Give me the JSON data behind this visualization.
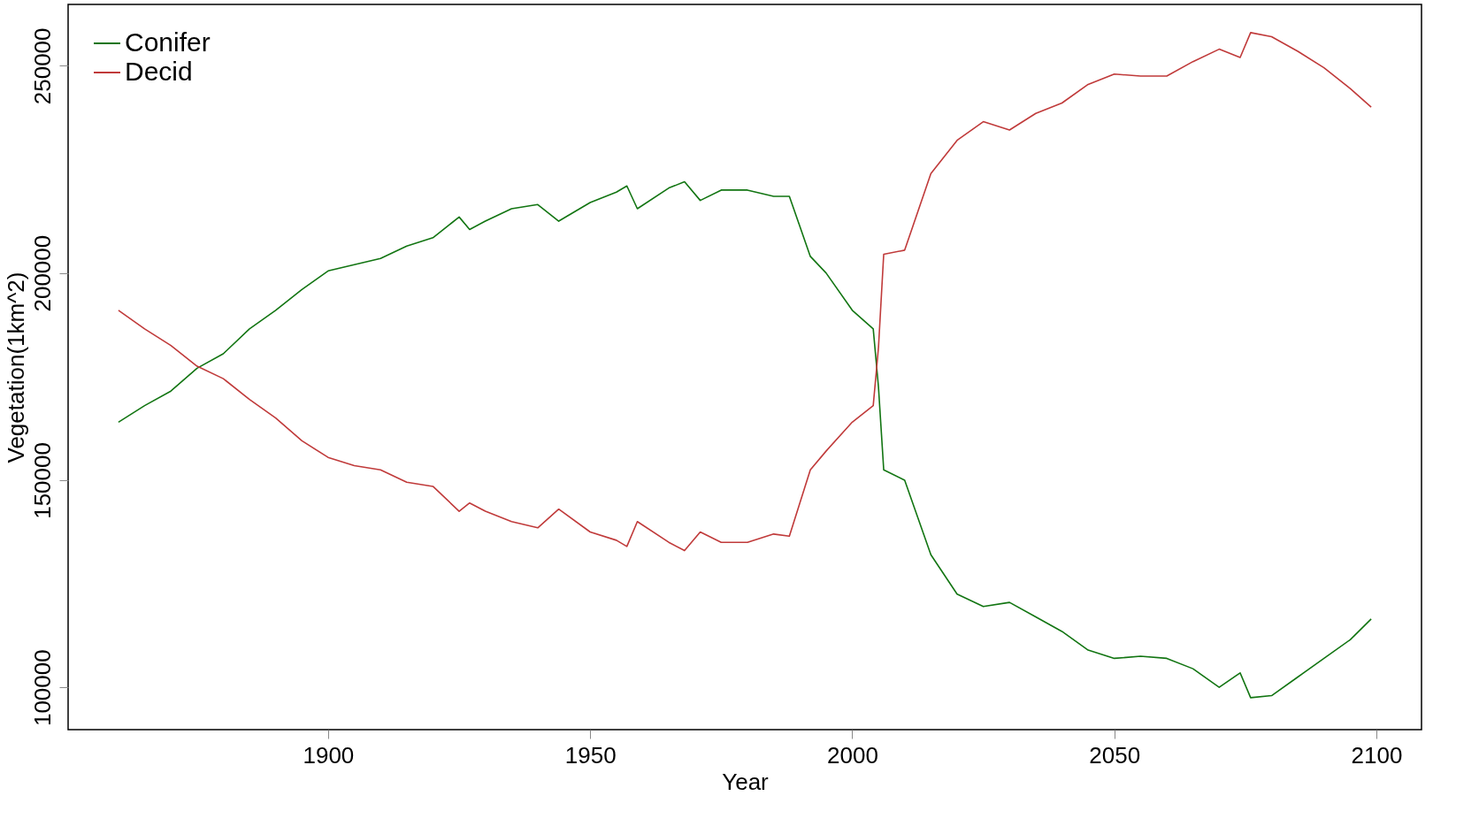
{
  "chart_data": {
    "type": "line",
    "xlabel": "Year",
    "ylabel": "Vegetation(1km^2)",
    "x": [
      1860,
      1865,
      1870,
      1875,
      1880,
      1885,
      1890,
      1895,
      1900,
      1905,
      1910,
      1915,
      1920,
      1925,
      1927,
      1930,
      1935,
      1940,
      1944,
      1950,
      1955,
      1957,
      1959,
      1965,
      1968,
      1971,
      1975,
      1980,
      1985,
      1988,
      1992,
      1995,
      2000,
      2004,
      2005,
      2006,
      2010,
      2015,
      2020,
      2025,
      2030,
      2035,
      2040,
      2045,
      2050,
      2055,
      2060,
      2065,
      2070,
      2074,
      2076,
      2080,
      2085,
      2090,
      2095,
      2099
    ],
    "series": [
      {
        "name": "Conifer",
        "color": "#127512",
        "values": [
          164000,
          168000,
          171500,
          177000,
          180500,
          186500,
          191000,
          196000,
          200500,
          202000,
          203500,
          206500,
          208500,
          213500,
          210500,
          212500,
          215500,
          216500,
          212500,
          217000,
          219500,
          221000,
          215500,
          220500,
          222000,
          217500,
          220000,
          220000,
          218500,
          218500,
          204000,
          200000,
          191000,
          186500,
          172500,
          152500,
          150000,
          132000,
          122500,
          119500,
          120500,
          117000,
          113500,
          109000,
          107000,
          107500,
          107000,
          104500,
          100000,
          103500,
          97500,
          98000,
          102500,
          107000,
          111500,
          116500
        ]
      },
      {
        "name": "Decid",
        "color": "#c03a3a",
        "values": [
          191000,
          186500,
          182500,
          177500,
          174500,
          169500,
          165000,
          159500,
          155500,
          153500,
          152500,
          149500,
          148500,
          142500,
          144500,
          142500,
          140000,
          138500,
          143000,
          137500,
          135500,
          134000,
          140000,
          135000,
          133000,
          137500,
          135000,
          135000,
          137000,
          136500,
          152500,
          157000,
          164000,
          168000,
          182000,
          204500,
          205500,
          224000,
          232000,
          236500,
          234500,
          238500,
          241000,
          245500,
          248000,
          247500,
          247500,
          251000,
          254000,
          252000,
          258000,
          257000,
          253500,
          249500,
          244500,
          240000
        ]
      }
    ],
    "xlim": [
      1850.4,
      2108.6
    ],
    "ylim": [
      89800,
      264800
    ],
    "xticks": [
      1900,
      1950,
      2000,
      2050,
      2100
    ],
    "yticks": [
      100000,
      150000,
      200000,
      250000
    ],
    "grid": false,
    "legend": "top left",
    "marker": "none",
    "line_style": "solid"
  }
}
